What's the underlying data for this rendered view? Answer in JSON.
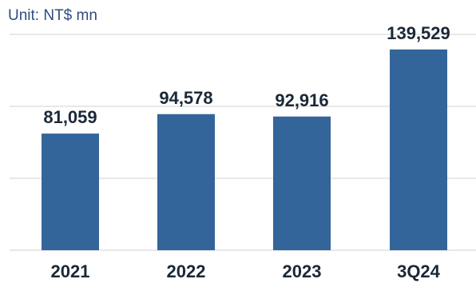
{
  "chart_data": {
    "type": "bar",
    "unit_label": "Unit: NT$ mn",
    "categories": [
      "2021",
      "2022",
      "2023",
      "3Q24"
    ],
    "values": [
      81059,
      94578,
      92916,
      139529
    ],
    "value_labels": [
      "81,059",
      "94,578",
      "92,916",
      "139,529"
    ],
    "title": "",
    "xlabel": "",
    "ylabel": "",
    "ylim": [
      0,
      160000
    ],
    "grid": true,
    "bar_color": "#33659a",
    "grid_color": "#d0d0d0"
  }
}
